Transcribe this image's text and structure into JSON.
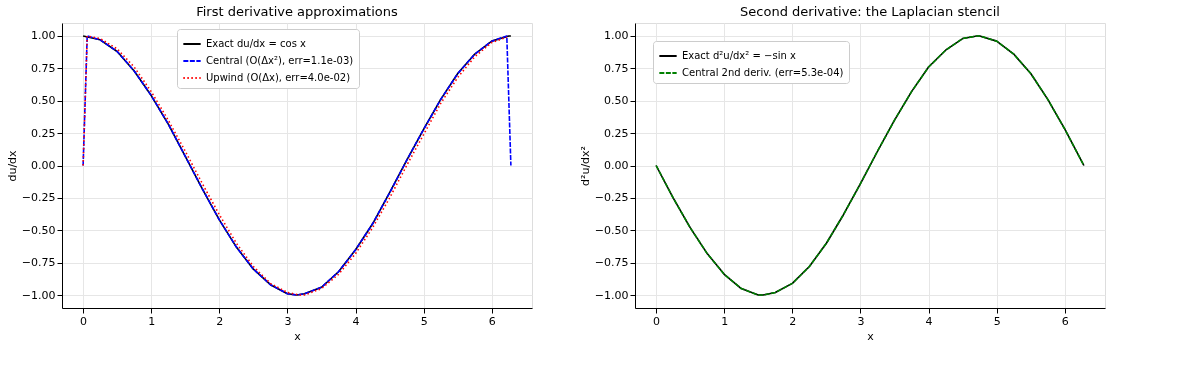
{
  "chart_data": [
    {
      "type": "line",
      "title": "First derivative approximations",
      "xlabel": "x",
      "ylabel": "du/dx",
      "xlim": [
        -0.31,
        6.59
      ],
      "ylim": [
        -1.1,
        1.1
      ],
      "xticks": [
        0,
        1,
        2,
        3,
        4,
        5,
        6
      ],
      "yticks": [
        {
          "value": -1,
          "label": "−1.00"
        },
        {
          "value": -0.75,
          "label": "−0.75"
        },
        {
          "value": -0.5,
          "label": "−0.50"
        },
        {
          "value": -0.25,
          "label": "−0.25"
        },
        {
          "value": 0,
          "label": "0.00"
        },
        {
          "value": 0.25,
          "label": "0.25"
        },
        {
          "value": 0.5,
          "label": "0.50"
        },
        {
          "value": 0.75,
          "label": "0.75"
        },
        {
          "value": 1,
          "label": "1.00"
        }
      ],
      "grid": true,
      "legend": "top",
      "series": [
        {
          "name": "Exact du/dx = cos x",
          "color": "#000000",
          "line_style": "solid",
          "x": [
            0,
            0.25,
            0.5,
            0.75,
            1,
            1.25,
            1.5,
            1.75,
            2,
            2.25,
            2.5,
            2.75,
            3,
            3.14,
            3.25,
            3.5,
            3.75,
            4,
            4.25,
            4.5,
            4.75,
            5,
            5.25,
            5.5,
            5.75,
            6,
            6.25,
            6.28
          ],
          "values": [
            1.0,
            0.97,
            0.88,
            0.73,
            0.54,
            0.32,
            0.07,
            -0.18,
            -0.42,
            -0.63,
            -0.8,
            -0.92,
            -0.99,
            -1.0,
            -0.99,
            -0.94,
            -0.82,
            -0.65,
            -0.45,
            -0.21,
            0.04,
            0.28,
            0.51,
            0.71,
            0.86,
            0.96,
            1.0,
            1.0
          ]
        },
        {
          "name": "Central (O(Δx²), err=1.1e-03)",
          "color": "#0000ff",
          "line_style": "dashed",
          "x": [
            0,
            0.06,
            0.25,
            0.5,
            0.75,
            1,
            1.25,
            1.5,
            1.75,
            2,
            2.25,
            2.5,
            2.75,
            3,
            3.14,
            3.25,
            3.5,
            3.75,
            4,
            4.25,
            4.5,
            4.75,
            5,
            5.25,
            5.5,
            5.75,
            6,
            6.22,
            6.28
          ],
          "values": [
            0.0,
            1.0,
            0.97,
            0.88,
            0.73,
            0.54,
            0.32,
            0.07,
            -0.18,
            -0.42,
            -0.63,
            -0.8,
            -0.92,
            -0.99,
            -1.0,
            -0.99,
            -0.94,
            -0.82,
            -0.65,
            -0.45,
            -0.21,
            0.04,
            0.28,
            0.51,
            0.71,
            0.86,
            0.96,
            1.0,
            0.0
          ]
        },
        {
          "name": "Upwind  (O(Δx), err=4.0e-02)",
          "color": "#ff0000",
          "line_style": "dotted",
          "x": [
            0,
            0.06,
            0.25,
            0.5,
            0.75,
            1,
            1.25,
            1.5,
            1.75,
            2,
            2.25,
            2.5,
            2.75,
            3,
            3.18,
            3.25,
            3.5,
            3.75,
            4,
            4.25,
            4.5,
            4.75,
            5,
            5.25,
            5.5,
            5.75,
            6,
            6.22
          ],
          "values": [
            0.0,
            1.0,
            0.98,
            0.9,
            0.76,
            0.57,
            0.35,
            0.11,
            -0.14,
            -0.38,
            -0.6,
            -0.78,
            -0.91,
            -0.98,
            -1.0,
            -1.0,
            -0.95,
            -0.84,
            -0.68,
            -0.48,
            -0.25,
            0.0,
            0.24,
            0.48,
            0.68,
            0.84,
            0.95,
            0.99
          ]
        }
      ]
    },
    {
      "type": "line",
      "title": "Second derivative: the Laplacian stencil",
      "xlabel": "x",
      "ylabel": "d²u/dx²",
      "xlim": [
        -0.31,
        6.59
      ],
      "ylim": [
        -1.1,
        1.1
      ],
      "xticks": [
        0,
        1,
        2,
        3,
        4,
        5,
        6
      ],
      "yticks": [
        {
          "value": -1,
          "label": "−1.00"
        },
        {
          "value": -0.75,
          "label": "−0.75"
        },
        {
          "value": -0.5,
          "label": "−0.50"
        },
        {
          "value": -0.25,
          "label": "−0.25"
        },
        {
          "value": 0,
          "label": "0.00"
        },
        {
          "value": 0.25,
          "label": "0.25"
        },
        {
          "value": 0.5,
          "label": "0.50"
        },
        {
          "value": 0.75,
          "label": "0.75"
        },
        {
          "value": 1,
          "label": "1.00"
        }
      ],
      "grid": true,
      "legend": "top left",
      "series": [
        {
          "name": "Exact d²u/dx² = −sin x",
          "color": "#000000",
          "line_style": "solid",
          "x": [
            0,
            0.25,
            0.5,
            0.75,
            1,
            1.25,
            1.5,
            1.57,
            1.75,
            2,
            2.25,
            2.5,
            2.75,
            3,
            3.25,
            3.5,
            3.75,
            4,
            4.25,
            4.5,
            4.71,
            4.75,
            5,
            5.25,
            5.5,
            5.75,
            6,
            6.25,
            6.28
          ],
          "values": [
            0.0,
            -0.25,
            -0.48,
            -0.68,
            -0.84,
            -0.95,
            -1.0,
            -1.0,
            -0.98,
            -0.91,
            -0.78,
            -0.6,
            -0.38,
            -0.14,
            0.11,
            0.35,
            0.57,
            0.76,
            0.89,
            0.98,
            1.0,
            1.0,
            0.96,
            0.86,
            0.71,
            0.51,
            0.28,
            0.03,
            0.0
          ]
        },
        {
          "name": "Central 2nd deriv. (err=5.3e-04)",
          "color": "#008000",
          "line_style": "dashed",
          "x": [
            0,
            0.25,
            0.5,
            0.75,
            1,
            1.25,
            1.5,
            1.57,
            1.75,
            2,
            2.25,
            2.5,
            2.75,
            3,
            3.25,
            3.5,
            3.75,
            4,
            4.25,
            4.5,
            4.71,
            4.75,
            5,
            5.25,
            5.5,
            5.75,
            6,
            6.25,
            6.28
          ],
          "values": [
            0.0,
            -0.25,
            -0.48,
            -0.68,
            -0.84,
            -0.95,
            -1.0,
            -1.0,
            -0.98,
            -0.91,
            -0.78,
            -0.6,
            -0.38,
            -0.14,
            0.11,
            0.35,
            0.57,
            0.76,
            0.89,
            0.98,
            1.0,
            1.0,
            0.96,
            0.86,
            0.71,
            0.51,
            0.28,
            0.03,
            0.0
          ]
        }
      ]
    }
  ]
}
